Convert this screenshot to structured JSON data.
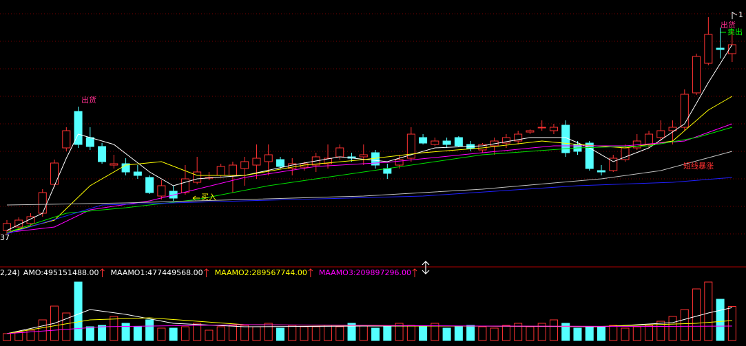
{
  "chart_data": {
    "type": "candlestick",
    "ylim": [
      0,
      385
    ],
    "candles": {
      "open": [
        50,
        55,
        60,
        75,
        117,
        170,
        223,
        185,
        172,
        145,
        147,
        135,
        127,
        100,
        107,
        105,
        120,
        127,
        130,
        130,
        140,
        145,
        150,
        153,
        140,
        142,
        145,
        147,
        157,
        157,
        157,
        163,
        140,
        145,
        155,
        185,
        175,
        180,
        185,
        175,
        167,
        173,
        177,
        180,
        193,
        200,
        195,
        203,
        175,
        177,
        137,
        137,
        153,
        170,
        175,
        185,
        195,
        200,
        250,
        293,
        315,
        307
      ],
      "close": [
        60,
        65,
        70,
        105,
        148,
        195,
        175,
        172,
        150,
        147,
        135,
        130,
        105,
        115,
        97,
        125,
        135,
        127,
        143,
        145,
        150,
        155,
        160,
        143,
        147,
        147,
        157,
        155,
        170,
        155,
        160,
        145,
        133,
        153,
        190,
        177,
        180,
        175,
        173,
        169,
        175,
        180,
        185,
        190,
        195,
        200,
        200,
        163,
        165,
        140,
        135,
        155,
        170,
        180,
        190,
        195,
        200,
        248,
        303,
        335,
        313,
        320
      ],
      "high": [
        65,
        69,
        75,
        110,
        153,
        200,
        230,
        200,
        177,
        160,
        155,
        145,
        130,
        123,
        115,
        145,
        157,
        135,
        147,
        150,
        157,
        175,
        175,
        157,
        155,
        150,
        163,
        175,
        175,
        163,
        175,
        167,
        147,
        160,
        200,
        190,
        185,
        185,
        187,
        180,
        177,
        185,
        190,
        195,
        197,
        210,
        205,
        210,
        180,
        180,
        145,
        160,
        175,
        190,
        195,
        210,
        210,
        255,
        307,
        360,
        345,
        340
      ],
      "low": [
        45,
        52,
        57,
        70,
        113,
        165,
        170,
        167,
        147,
        140,
        130,
        125,
        103,
        95,
        93,
        102,
        117,
        123,
        127,
        105,
        115,
        125,
        130,
        140,
        130,
        137,
        135,
        140,
        153,
        150,
        145,
        140,
        125,
        140,
        150,
        175,
        173,
        170,
        171,
        165,
        163,
        160,
        170,
        175,
        190,
        195,
        190,
        157,
        160,
        137,
        130,
        135,
        150,
        167,
        170,
        180,
        175,
        195,
        247,
        290,
        300,
        295
      ]
    },
    "ma_lines": [
      {
        "color": "#ffffff",
        "x": [
          0,
          3,
          5,
          6,
          9,
          12,
          14,
          16,
          20,
          24,
          28,
          32,
          36,
          40,
          44,
          47,
          49,
          51,
          54,
          57,
          59,
          61
        ],
        "values": [
          50,
          75,
          155,
          190,
          175,
          135,
          115,
          125,
          130,
          145,
          157,
          150,
          170,
          173,
          185,
          185,
          170,
          150,
          170,
          205,
          265,
          320
        ]
      },
      {
        "color": "#ffff00",
        "x": [
          0,
          4,
          7,
          10,
          13,
          16,
          20,
          25,
          30,
          35,
          40,
          45,
          48,
          52,
          56,
          59,
          61
        ],
        "values": [
          47,
          65,
          115,
          145,
          150,
          130,
          130,
          145,
          153,
          163,
          170,
          180,
          175,
          170,
          180,
          225,
          245
        ]
      },
      {
        "color": "#ff00ff",
        "x": [
          0,
          4,
          7,
          12,
          16,
          20,
          26,
          32,
          40,
          46,
          52,
          57,
          61
        ],
        "values": [
          47,
          55,
          80,
          93,
          110,
          127,
          143,
          149,
          163,
          173,
          173,
          180,
          205
        ]
      },
      {
        "color": "#00e000",
        "x": [
          0,
          5,
          10,
          16,
          22,
          30,
          40,
          48,
          54,
          58,
          61
        ],
        "values": [
          47,
          75,
          83,
          95,
          115,
          135,
          160,
          170,
          173,
          185,
          200
        ]
      },
      {
        "color": "#c0c0c0",
        "x": [
          0,
          10,
          20,
          30,
          40,
          50,
          55,
          61
        ],
        "values": [
          87,
          90,
          95,
          100,
          110,
          125,
          137,
          165
        ]
      },
      {
        "color": "#2020ff",
        "x": [
          0,
          8,
          20,
          35,
          48,
          56,
          61
        ],
        "values": [
          45,
          87,
          93,
          100,
          115,
          120,
          127
        ]
      }
    ],
    "annotations": [
      "出货",
      "出货",
      "卖出",
      "买入",
      "短线暴涨",
      "37",
      "1"
    ],
    "volume": {
      "params": "2,24)",
      "items": [
        {
          "label": "AMO:495151488.00",
          "color": "#ffffff"
        },
        {
          "label": "MAAMO1:477449568.00",
          "color": "#ffffff"
        },
        {
          "label": "MAAMO2:289567744.00",
          "color": "#ffff00"
        },
        {
          "label": "MAAMO3:209897296.00",
          "color": "#ff00ff"
        }
      ],
      "ylim": [
        0,
        900000000
      ],
      "values": [
        100000000,
        120000000,
        150000000,
        300000000,
        500000000,
        400000000,
        850000000,
        200000000,
        220000000,
        350000000,
        250000000,
        200000000,
        300000000,
        180000000,
        180000000,
        200000000,
        250000000,
        150000000,
        200000000,
        220000000,
        220000000,
        200000000,
        250000000,
        180000000,
        220000000,
        200000000,
        200000000,
        220000000,
        200000000,
        250000000,
        220000000,
        180000000,
        200000000,
        250000000,
        220000000,
        200000000,
        250000000,
        180000000,
        200000000,
        220000000,
        200000000,
        180000000,
        220000000,
        250000000,
        200000000,
        250000000,
        300000000,
        250000000,
        180000000,
        200000000,
        200000000,
        220000000,
        180000000,
        200000000,
        220000000,
        280000000,
        350000000,
        450000000,
        750000000,
        850000000,
        600000000,
        495151488
      ],
      "ma_lines": [
        {
          "color": "#ffffff",
          "x": [
            0,
            4,
            7,
            10,
            14,
            20,
            30,
            40,
            50,
            56,
            59,
            61
          ],
          "values": [
            100000000,
            250000000,
            450000000,
            380000000,
            250000000,
            200000000,
            210000000,
            210000000,
            200000000,
            260000000,
            400000000,
            477449568
          ]
        },
        {
          "color": "#ffff00",
          "x": [
            0,
            7,
            12,
            20,
            35,
            50,
            58,
            61
          ],
          "values": [
            100000000,
            300000000,
            330000000,
            230000000,
            210000000,
            205000000,
            250000000,
            289567744
          ]
        },
        {
          "color": "#ff00ff",
          "x": [
            0,
            8,
            20,
            40,
            55,
            61
          ],
          "values": [
            100000000,
            200000000,
            230000000,
            210000000,
            205000000,
            209897296
          ]
        }
      ]
    }
  }
}
